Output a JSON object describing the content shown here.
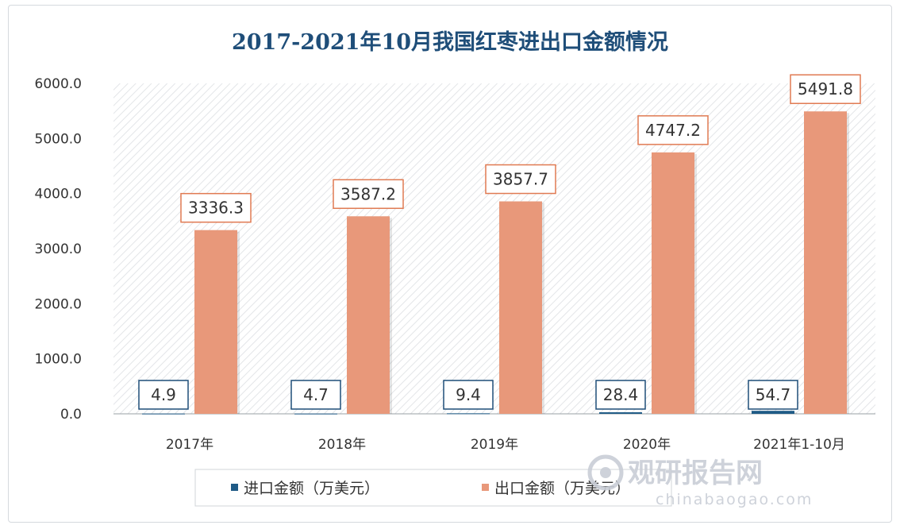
{
  "chart_data": {
    "type": "bar",
    "title": "2017-2021年10月我国红枣进出口金额情况",
    "categories": [
      "2017年",
      "2018年",
      "2019年",
      "2020年",
      "2021年1-10月"
    ],
    "series": [
      {
        "name": "进口金额（万美元）",
        "color": "#1f5b86",
        "label_border": "#1f4e79",
        "values": [
          4.9,
          4.7,
          9.4,
          28.4,
          54.7
        ],
        "labels": [
          "4.9",
          "4.7",
          "9.4",
          "28.4",
          "54.7"
        ]
      },
      {
        "name": "出口金额（万美元）",
        "color": "#e8987a",
        "label_border": "#e07a52",
        "values": [
          3336.3,
          3587.2,
          3857.7,
          4747.2,
          5491.8
        ],
        "labels": [
          "3336.3",
          "3587.2",
          "3857.7",
          "4747.2",
          "5491.8"
        ]
      }
    ],
    "yticks": [
      "0.0",
      "1000.0",
      "2000.0",
      "3000.0",
      "4000.0",
      "5000.0",
      "6000.0"
    ],
    "ylim": [
      0,
      6000
    ],
    "xlabel": "",
    "ylabel": "",
    "grid": false,
    "legend_position": "bottom"
  },
  "watermark": {
    "brand_cn": "观研报告网",
    "brand_en": "chinabaogao.com"
  }
}
